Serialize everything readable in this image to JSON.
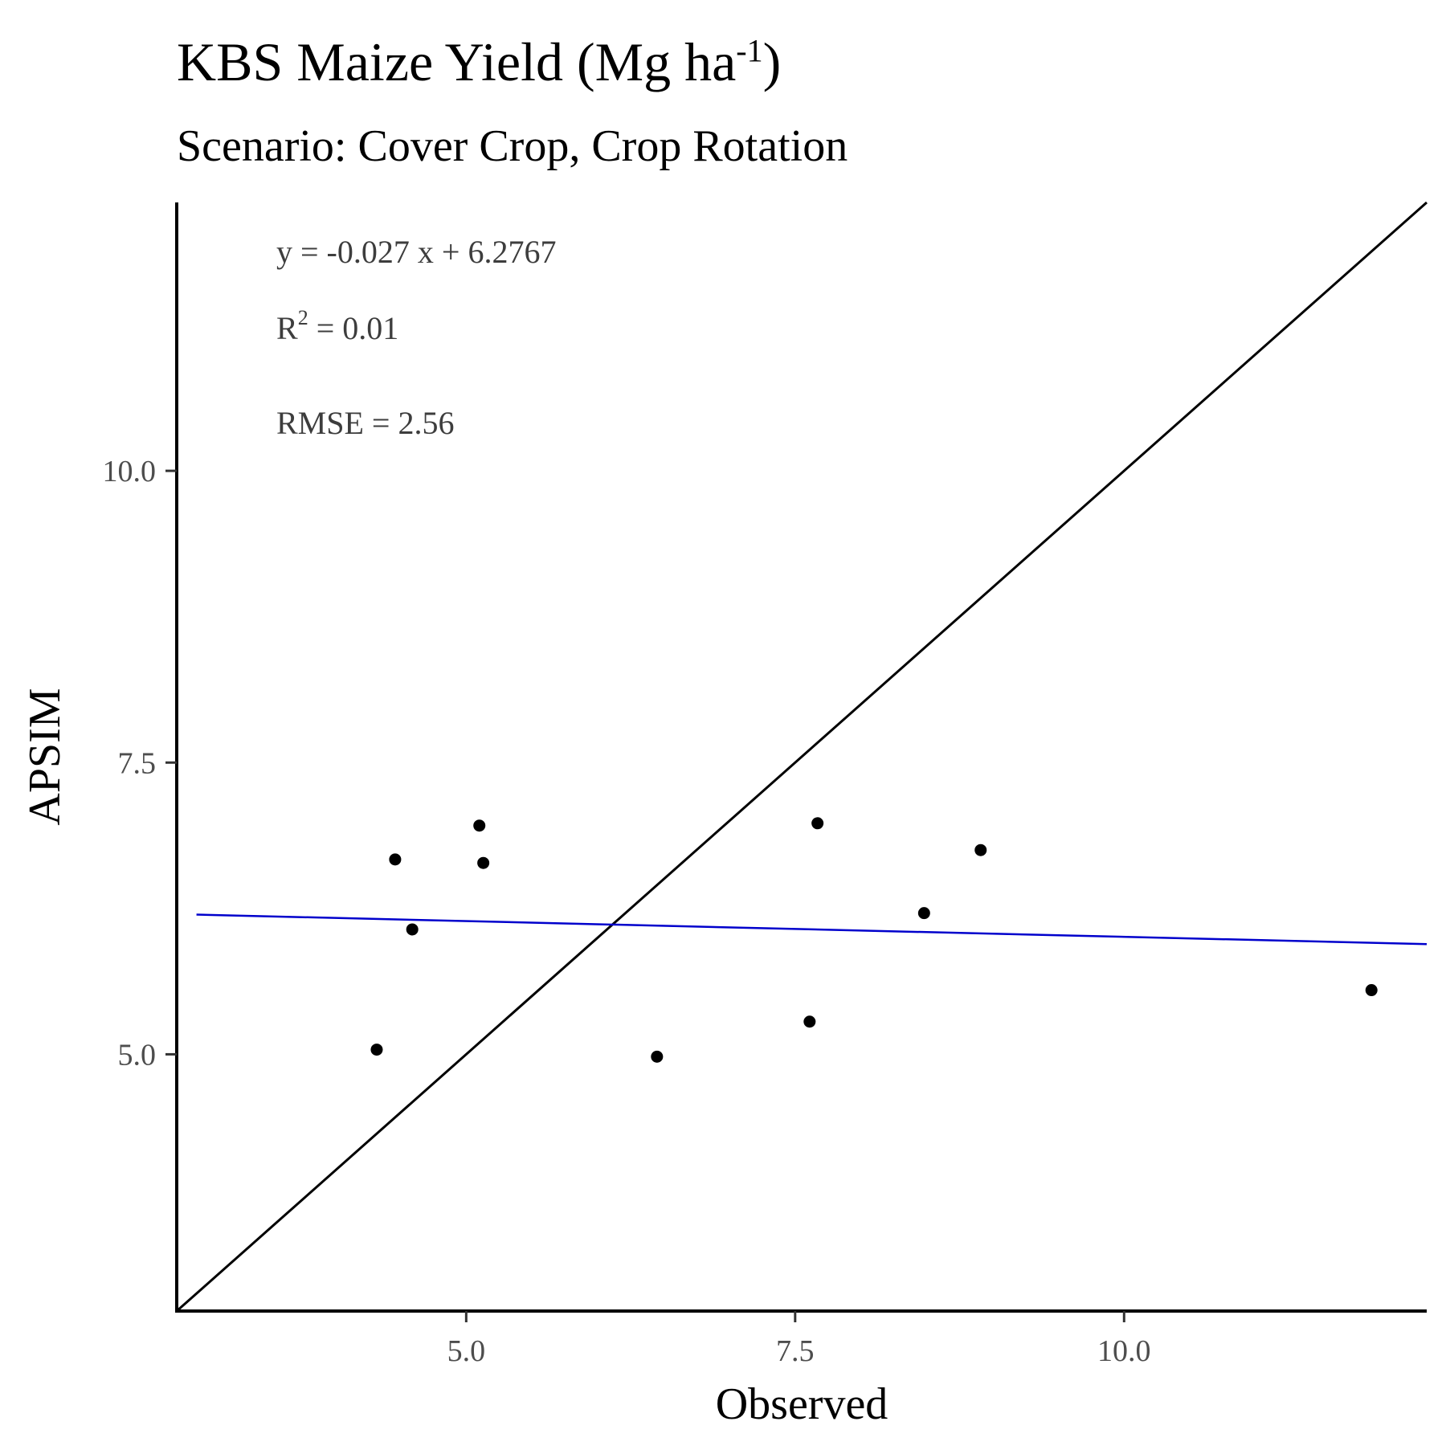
{
  "chart_data": {
    "type": "scatter",
    "title_main": "KBS Maize Yield (Mg ha",
    "title_sup": "-1",
    "title_close": ")",
    "subtitle": "Scenario: Cover Crop, Crop Rotation",
    "xlabel": "Observed",
    "ylabel": "APSIM",
    "xlim": [
      2.8,
      12.3
    ],
    "ylim": [
      2.8,
      12.3
    ],
    "x_ticks": [
      5.0,
      7.5,
      10.0
    ],
    "y_ticks": [
      5.0,
      7.5,
      10.0
    ],
    "x_tick_labels": [
      "5.0",
      "7.5",
      "10.0"
    ],
    "y_tick_labels": [
      "5.0",
      "7.5",
      "10.0"
    ],
    "points": [
      {
        "x": 4.32,
        "y": 5.04
      },
      {
        "x": 4.46,
        "y": 6.67
      },
      {
        "x": 4.59,
        "y": 6.07
      },
      {
        "x": 5.1,
        "y": 6.96
      },
      {
        "x": 5.13,
        "y": 6.64
      },
      {
        "x": 6.45,
        "y": 4.98
      },
      {
        "x": 7.61,
        "y": 5.28
      },
      {
        "x": 7.67,
        "y": 6.98
      },
      {
        "x": 8.48,
        "y": 6.21
      },
      {
        "x": 8.91,
        "y": 6.75
      },
      {
        "x": 11.88,
        "y": 5.55
      }
    ],
    "reference_line": {
      "type": "1:1",
      "color": "#000000"
    },
    "regression_line": {
      "slope": -0.027,
      "intercept": 6.2767,
      "color": "#0000cc"
    },
    "annotations": {
      "equation": "y = -0.027 x +  6.2767",
      "r2_prefix": "R",
      "r2_sup": "2",
      "r2_value": " = 0.01",
      "rmse": "RMSE = 2.56"
    },
    "grid": false
  }
}
